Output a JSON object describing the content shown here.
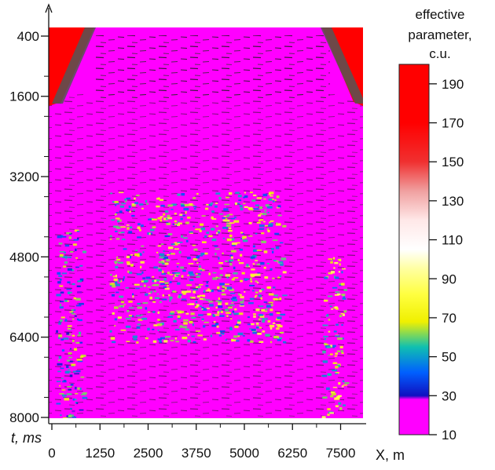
{
  "chart_data": {
    "type": "heatmap",
    "title": "",
    "xlabel": "X, m",
    "ylabel": "t, ms",
    "xlim": [
      0,
      8000
    ],
    "ylim": [
      8000,
      0
    ],
    "x_ticks": [
      0,
      1250,
      2500,
      3750,
      5000,
      6250,
      7500
    ],
    "x_tick_labels": [
      "0",
      "1250",
      "2500",
      "3750",
      "5000",
      "6250",
      "7500"
    ],
    "y_ticks": [
      400,
      1600,
      3200,
      4800,
      6400,
      8000
    ],
    "y_tick_labels": [
      "400",
      "1600",
      "3200",
      "4800",
      "6400",
      "8000"
    ],
    "colorbar": {
      "title_lines": [
        "effective",
        "parameter,",
        "c.u."
      ],
      "range": [
        10,
        200
      ],
      "ticks": [
        10,
        30,
        50,
        70,
        90,
        110,
        130,
        150,
        170,
        190
      ],
      "tick_labels": [
        "10",
        "30",
        "50",
        "70",
        "90",
        "110",
        "130",
        "150",
        "170",
        "190"
      ],
      "colors": [
        {
          "value": 10,
          "color": "#ff00ff"
        },
        {
          "value": 28,
          "color": "#ff00ff"
        },
        {
          "value": 30,
          "color": "#1010c0"
        },
        {
          "value": 42,
          "color": "#0060ff"
        },
        {
          "value": 55,
          "color": "#10c0b0"
        },
        {
          "value": 68,
          "color": "#f0f000"
        },
        {
          "value": 82,
          "color": "#ffff40"
        },
        {
          "value": 95,
          "color": "#ffffa0"
        },
        {
          "value": 105,
          "color": "#ffffff"
        },
        {
          "value": 120,
          "color": "#ffe8e8"
        },
        {
          "value": 135,
          "color": "#f0a0a0"
        },
        {
          "value": 150,
          "color": "#f03030"
        },
        {
          "value": 170,
          "color": "#ff0000"
        },
        {
          "value": 200,
          "color": "#ff0000"
        }
      ]
    },
    "background_value": 15,
    "anomaly_zones": [
      {
        "x_range": [
          1500,
          6000
        ],
        "t_range": [
          3500,
          6500
        ],
        "typical_value": 60
      },
      {
        "x_range": [
          7000,
          7600
        ],
        "t_range": [
          4800,
          8000
        ],
        "typical_value": 65
      },
      {
        "x_range": [
          100,
          800
        ],
        "t_range": [
          4200,
          8000
        ],
        "typical_value": 50
      }
    ],
    "top_corner_blocks_value": 190
  }
}
